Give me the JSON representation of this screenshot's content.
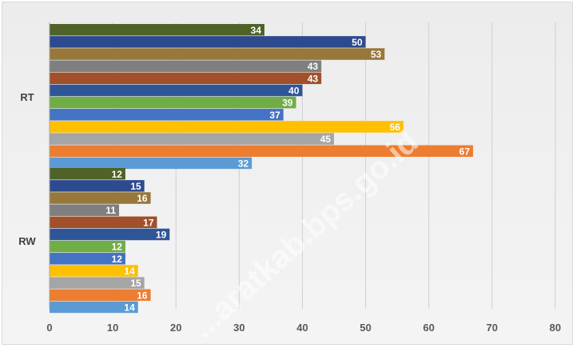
{
  "chart_data": {
    "type": "bar",
    "orientation": "horizontal",
    "categories": [
      "RT",
      "RW"
    ],
    "xlim": [
      0,
      80
    ],
    "x_ticks": [
      "0",
      "10",
      "20",
      "30",
      "40",
      "50",
      "60",
      "70",
      "80"
    ],
    "grid": true,
    "series": [
      {
        "color": "#4f6228",
        "values": [
          34,
          12
        ]
      },
      {
        "color": "#2e4a8e",
        "values": [
          50,
          15
        ]
      },
      {
        "color": "#98773b",
        "values": [
          53,
          16
        ]
      },
      {
        "color": "#7f7f7f",
        "values": [
          43,
          11
        ]
      },
      {
        "color": "#a0502a",
        "values": [
          43,
          17
        ]
      },
      {
        "color": "#2f5597",
        "values": [
          40,
          19
        ]
      },
      {
        "color": "#70ad47",
        "values": [
          39,
          12
        ]
      },
      {
        "color": "#4472c4",
        "values": [
          37,
          12
        ]
      },
      {
        "color": "#ffc000",
        "values": [
          56,
          14
        ]
      },
      {
        "color": "#a5a5a5",
        "values": [
          45,
          15
        ]
      },
      {
        "color": "#ed7d31",
        "values": [
          67,
          16
        ]
      },
      {
        "color": "#5b9bd5",
        "values": [
          32,
          14
        ]
      }
    ]
  },
  "watermark": {
    "text": "...aratkab.bps.go.id"
  }
}
